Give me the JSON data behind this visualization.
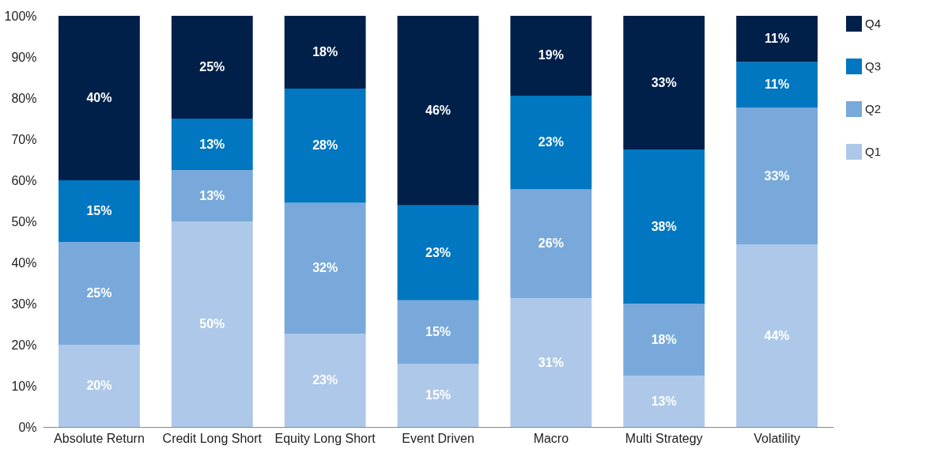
{
  "chart_data": {
    "type": "bar",
    "stacked": true,
    "categories": [
      "Absolute Return",
      "Credit Long Short",
      "Equity Long Short",
      "Event Driven",
      "Macro",
      "Multi Strategy",
      "Volatility"
    ],
    "series": [
      {
        "name": "Q1",
        "color": "#adc8e8",
        "values": [
          20,
          50,
          22.7,
          15.4,
          31.3,
          12.5,
          44.4
        ],
        "value_labels": [
          "20%",
          "50%",
          "23%",
          "15%",
          "31%",
          "13%",
          "44%"
        ]
      },
      {
        "name": "Q2",
        "color": "#78a9da",
        "values": [
          25,
          12.5,
          31.8,
          15.4,
          26.5,
          17.5,
          33.3
        ],
        "value_labels": [
          "25%",
          "13%",
          "32%",
          "15%",
          "26%",
          "18%",
          "33%"
        ]
      },
      {
        "name": "Q3",
        "color": "#0077c0",
        "values": [
          15,
          12.5,
          27.8,
          23.1,
          22.8,
          37.5,
          11.1
        ],
        "value_labels": [
          "15%",
          "13%",
          "28%",
          "23%",
          "23%",
          "38%",
          "11%"
        ]
      },
      {
        "name": "Q4",
        "color": "#00204a",
        "values": [
          40,
          25,
          17.7,
          46.1,
          19.4,
          32.5,
          11.2
        ],
        "value_labels": [
          "40%",
          "25%",
          "18%",
          "46%",
          "19%",
          "33%",
          "11%"
        ]
      }
    ],
    "ylim": [
      0,
      100
    ],
    "yticks": [
      {
        "value": 0,
        "label": "0%"
      },
      {
        "value": 10,
        "label": "10%"
      },
      {
        "value": 20,
        "label": "20%"
      },
      {
        "value": 30,
        "label": "30%"
      },
      {
        "value": 40,
        "label": "40%"
      },
      {
        "value": 50,
        "label": "50%"
      },
      {
        "value": 60,
        "label": "60%"
      },
      {
        "value": 70,
        "label": "70%"
      },
      {
        "value": 80,
        "label": "80%"
      },
      {
        "value": 90,
        "label": "90%"
      },
      {
        "value": 100,
        "label": "100%"
      }
    ],
    "grid": false,
    "legend": "top right"
  }
}
